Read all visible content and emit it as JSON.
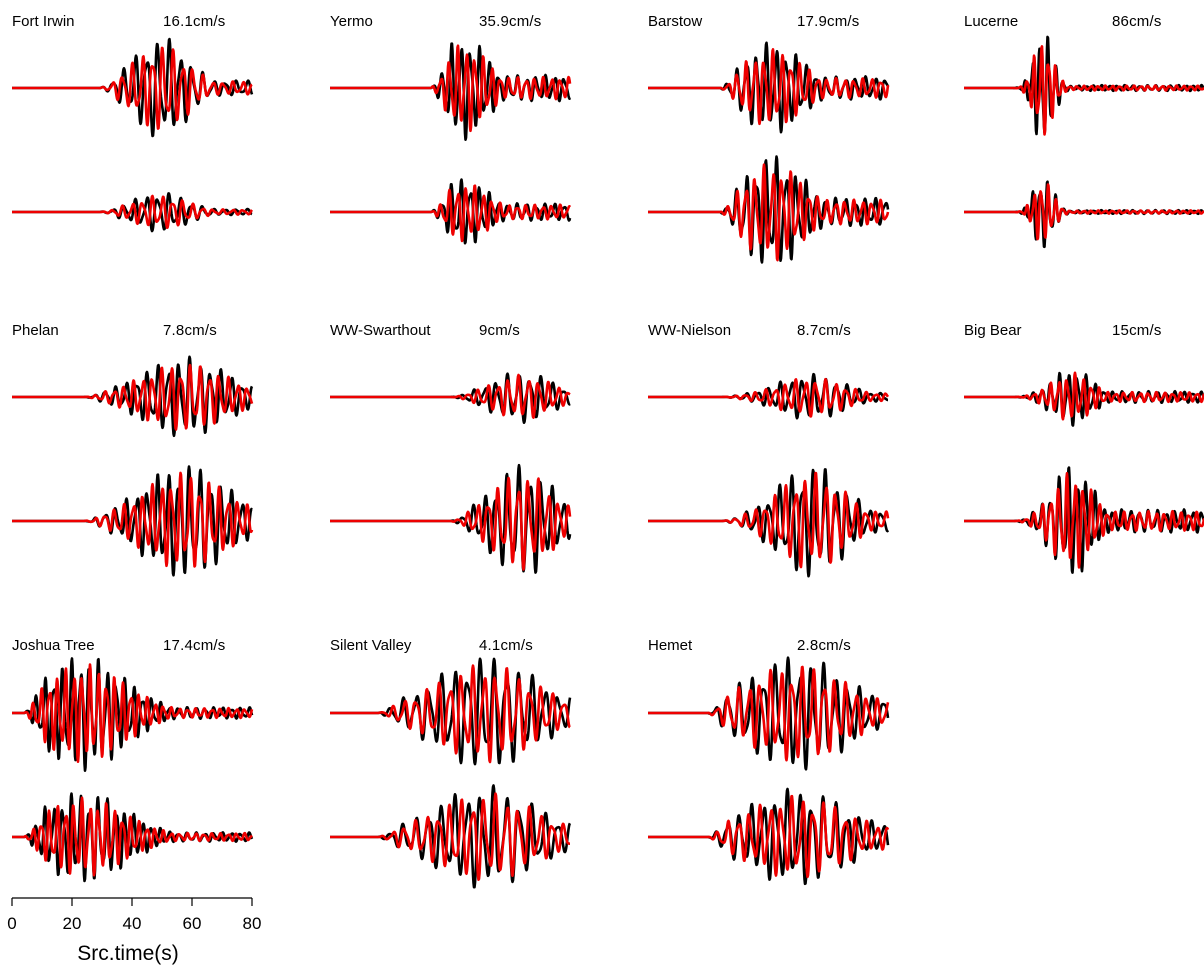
{
  "chart_data": {
    "type": "line",
    "description_series": [
      "black",
      "red"
    ],
    "colors": {
      "trace_a": "#000000",
      "trace_b": "#ee0000"
    },
    "xaxis": {
      "label": "Src.time(s)",
      "ticks": [
        0,
        20,
        40,
        60,
        80
      ],
      "range": [
        0,
        80
      ]
    },
    "stations": [
      {
        "name": "Fort Irwin",
        "peak": "16.1cm/s"
      },
      {
        "name": "Yermo",
        "peak": "35.9cm/s"
      },
      {
        "name": "Barstow",
        "peak": "17.9cm/s"
      },
      {
        "name": "Lucerne",
        "peak": "86cm/s"
      },
      {
        "name": "Phelan",
        "peak": "7.8cm/s"
      },
      {
        "name": "WW-Swarthout",
        "peak": "9cm/s"
      },
      {
        "name": "WW-Nielson",
        "peak": "8.7cm/s"
      },
      {
        "name": "Big Bear",
        "peak": "15cm/s"
      },
      {
        "name": "Joshua Tree",
        "peak": "17.4cm/s"
      },
      {
        "name": "Silent Valley",
        "peak": "4.1cm/s"
      },
      {
        "name": "Hemet",
        "peak": "2.8cm/s"
      }
    ]
  }
}
